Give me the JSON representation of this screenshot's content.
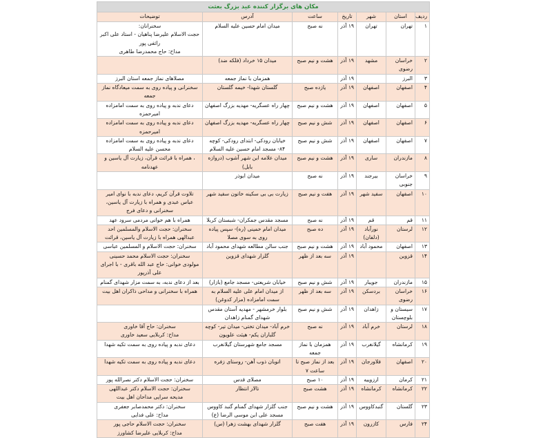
{
  "title": "مکان های برگزار کننده عید بزرگ بعثت",
  "columns": [
    "ردیف",
    "استان",
    "شهر",
    "تاریخ",
    "ساعت",
    "آدرس",
    "توضیحات"
  ],
  "colors": {
    "title_bg": "#d9d9d9",
    "title_text": "#2e8b3a",
    "row_alt": "#fbe2d3"
  },
  "rows": [
    [
      "۱",
      "تهران",
      "تهران",
      "۱۹ آذر",
      "نه صبح",
      "میدان امام حسین علیه السلام",
      "سخنرانان:\nحجت الاسلام علیرضا پناهیان - استاد علی اکبر رائفی پور\nمداح: حاج محمدرضا طاهری"
    ],
    [
      "۲",
      "خراسان رضوی",
      "مشهد",
      "۱۹ آذر",
      "هشت و نیم صبح",
      "میدان ۱۵ خرداد (فلکه ضد)",
      ""
    ],
    [
      "۳",
      "البرز",
      "",
      "۱۹ آذر",
      "",
      "همزمان با نماز جمعه",
      "مصلاهای نماز جمعه استان البرز"
    ],
    [
      "۴",
      "اصفهان",
      "اصفهان",
      "۱۹ آذر",
      "یازده صبح",
      "گلستان شهدا- خیمه گلستان",
      "سخنرانی و پیاده روی به سمت میعادگاه نماز جمعه"
    ],
    [
      "۵",
      "اصفهان",
      "اصفهان",
      "۱۹ آذر",
      "هشت و نیم صبح",
      "چهار راه عسگریه- مهدیه بزرگ اصفهان",
      "دعای ندبه و پیاده روی به سمت امامزاده امیرحمزه"
    ],
    [
      "۶",
      "اصفهان",
      "اصفهان",
      "۱۹ آذر",
      "شش و نیم صبح",
      "چهار راه عسگریه- مهدیه بزرگ اصفهان",
      "دعای ندبه و پیاده روی به سمت امامزاده امیرحمزه"
    ],
    [
      "۷",
      "اصفهان",
      "اصفهان",
      "۱۹ آذر",
      "شش و نیم صبح",
      "خیابان رودکی- ابتدای رودکی- کوچه ۸۴- مسجد امام حسین علیه السلام",
      "دعای ندبه و پیاده روی به سمت امامزاده محسن علیه السلام"
    ],
    [
      "۸",
      "مازندران",
      "ساری",
      "۱۹ آذر",
      "هشت و نیم صبح",
      "میدان علامه ابن شهر آشوب (دروازه بابل)",
      "، همراه با قرائت قرآن، زیارت آل یاسین و عهدنامه"
    ],
    [
      "۹",
      "خراسان جنوبی",
      "بیرجند",
      "۱۹ آذر",
      "نه صبح",
      "میدان ابوذر",
      ""
    ],
    [
      "۱۰",
      "اصفهان",
      "سفید شهر",
      "۱۹ آذر",
      "هفت و نیم صبح",
      "زیارت بی بی سکینه خاتون سفید شهر",
      "تلاوت قرآن کریم، دعای ندبه با نوای امیر عباس عبدی و همراه با زیارت آل یاسین، سخنرانی و دعای فرج"
    ],
    [
      "۱۱",
      "قم",
      "قم",
      "۱۹ آذر",
      "نه صبح",
      "مسجد مقدس جمکران- شبستان کربلا",
      "همراه با هم خوانی مردمی سرود عهد"
    ],
    [
      "۱۲",
      "لرستان",
      "نورآباد (دلفان)",
      "۱۹ آذر",
      "ده صبح",
      "میدان امام خمینی (ره)- سپس پیاده روی به سوی مصلا",
      "سخنران: حجت الاسلام والمسلمین احد عبدالهی همراه با زیارت آل یاسین، قرائت"
    ],
    [
      "۱۳",
      "اصفهان",
      "محمود آباد",
      "۱۹ آذر",
      "هشت و نیم صبح",
      "جنب سالن مطالعه شهدای محمود آباد",
      "سخنران: حجت الاسلام و المسلمین عباسی"
    ],
    [
      "۱۴",
      "قزوین",
      "",
      "۱۹ آذر",
      "سه بعد از ظهر",
      "گلزار شهدای قزوین",
      "سخنران: حجت الاسلام محمد حسینی\nمولودی خوانی: حاج عبد الله باقری - با اجرای علی آذرپور"
    ],
    [
      "۱۵",
      "مازندران",
      "جویبار",
      "۱۹ آذر",
      "شش و نیم صبح",
      "خیابان شریعتی- مسجد جامع (بازار)",
      "بعد از دعای ندبه، به سمت مزار شهدای گمنام"
    ],
    [
      "۱۶",
      "خراسان رضوی",
      "بردسکن",
      "۱۹ آذر",
      "سه بعد از ظهر",
      "از میدان امام علی علیه السلام به سمت امامزاده (مزار کدوغن)",
      "همراه با سخنرانی و مداحی ذاکران اهل بیت"
    ],
    [
      "۱۷",
      "سیستان و بلوچستان",
      "زاهدان",
      "۱۹ آذر",
      "شش و نیم صبح",
      "بلوار خرمشهر - مهدیه آستان مقدس شهدای گمنام زاهدان",
      ""
    ],
    [
      "۱۸",
      "لرستان",
      "خرم آباد",
      "۱۹ آذر",
      "نه صبح",
      "خرم آباد- میدان تختی- میدان تیر- کوچه گلباران یکم- هیئت علویون",
      "سخنران: حاج آقا خاوری\nمداح: کربلایی سعید خاوری"
    ],
    [
      "۱۹",
      "کرمانشاه",
      "گیلانغرب",
      "۱۹ آذر",
      "همزمان با نماز جمعه",
      "مسجد جامع شهرستان گیلانغرب",
      "دعای ندبه و پیاده روی به سمت تکیه شهدا"
    ],
    [
      "۲۰",
      "اصفهان",
      "فلاورجان",
      "۱۹ آذر",
      "بعد از نماز صبح تا ساعت ۷",
      "اتوبان ذوب آهن- روستای زفره",
      "دعای ندبه و پیاده روی به سمت تکیه شهدا"
    ],
    [
      "۲۱",
      "کرمان",
      "ارزوییه",
      "۱۹ آذر",
      "۱۰ صبح",
      "مصلای قدس",
      "سخنران: حجت الاسلام دکتر نصرالله پور"
    ],
    [
      "۲۲",
      "کرمانشاه",
      "کرمانشاه",
      "۱۹ آذر",
      "هشت صبح",
      "تالار انتظار",
      "سخنران: حجت الاسلام دکتر عبداللهی\nمدیحه سرایی مداحان اهل بیت"
    ],
    [
      "۲۳",
      "گلستان",
      "گنبدکاووس",
      "۱۹ آذر",
      "هشت و نیم صبح",
      "جنب گلزار شهدای گمنام گنبد کاووس\nمسجد علی ابن موسی الرضا (ع)",
      "سخنران: دکتر محمدصابر جعفری\nمداح: علی فدایی"
    ],
    [
      "۲۴",
      "فارس",
      "کازرون",
      "۱۹ آذر",
      "هفت صبح",
      "گلزار شهدای بهشت زهرا (س)",
      "سخنران: حجت الاسلام حاجی پور\nمداح: کربلایی علیرضا کشاورز"
    ]
  ]
}
